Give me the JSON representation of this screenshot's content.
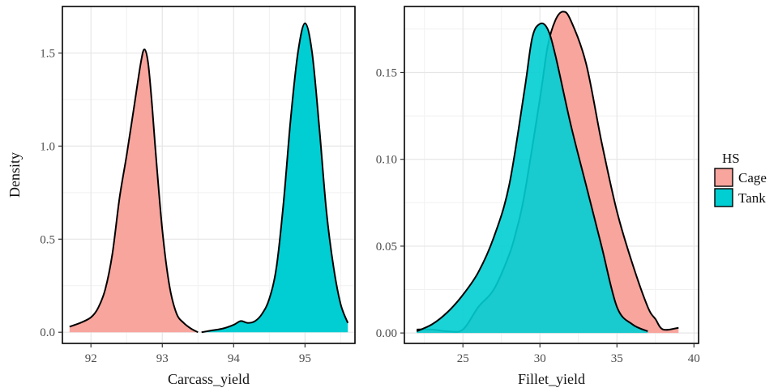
{
  "chart_data": [
    {
      "type": "area",
      "xlabel": "Carcass_yield",
      "ylabel": "Density",
      "xlim": [
        91.6,
        95.7
      ],
      "ylim": [
        -0.06,
        1.75
      ],
      "xticks": [
        92,
        93,
        94,
        95
      ],
      "yticks": [
        0.0,
        0.5,
        1.0,
        1.5
      ],
      "ytick_labels": [
        "0.0",
        "0.5",
        "1.0",
        "1.5"
      ],
      "grid": true,
      "series": [
        {
          "name": "Cage",
          "x": [
            91.7,
            91.85,
            92.0,
            92.1,
            92.2,
            92.3,
            92.4,
            92.5,
            92.6,
            92.7,
            92.75,
            92.8,
            92.85,
            92.9,
            93.0,
            93.1,
            93.2,
            93.3,
            93.4,
            93.5
          ],
          "y": [
            0.03,
            0.05,
            0.08,
            0.13,
            0.23,
            0.42,
            0.72,
            0.95,
            1.2,
            1.45,
            1.52,
            1.45,
            1.25,
            1.0,
            0.55,
            0.25,
            0.1,
            0.05,
            0.02,
            0.0
          ]
        },
        {
          "name": "Tank",
          "x": [
            93.55,
            93.7,
            93.85,
            94.0,
            94.1,
            94.2,
            94.3,
            94.4,
            94.5,
            94.6,
            94.7,
            94.8,
            94.9,
            95.0,
            95.1,
            95.2,
            95.3,
            95.4,
            95.5,
            95.6
          ],
          "y": [
            0.0,
            0.01,
            0.02,
            0.04,
            0.06,
            0.05,
            0.06,
            0.1,
            0.18,
            0.35,
            0.7,
            1.15,
            1.5,
            1.66,
            1.5,
            1.1,
            0.65,
            0.35,
            0.15,
            0.05
          ]
        }
      ]
    },
    {
      "type": "area",
      "xlabel": "Fillet_yield",
      "ylabel": "",
      "xlim": [
        21.2,
        40.3
      ],
      "ylim": [
        -0.006,
        0.188
      ],
      "xticks": [
        25,
        30,
        35,
        40
      ],
      "yticks": [
        0.0,
        0.05,
        0.1,
        0.15
      ],
      "ytick_labels": [
        "0.00",
        "0.05",
        "0.10",
        "0.15"
      ],
      "grid": true,
      "series": [
        {
          "name": "Cage",
          "x": [
            22.0,
            23.0,
            24.0,
            25.0,
            26.0,
            27.0,
            28.0,
            28.5,
            29.0,
            30.0,
            30.5,
            31.0,
            31.5,
            32.0,
            33.0,
            34.0,
            35.0,
            36.0,
            37.0,
            37.5,
            38.0,
            39.0
          ],
          "y": [
            0.002,
            0.002,
            0.001,
            0.002,
            0.015,
            0.025,
            0.045,
            0.06,
            0.08,
            0.135,
            0.165,
            0.18,
            0.185,
            0.18,
            0.155,
            0.11,
            0.07,
            0.04,
            0.015,
            0.008,
            0.002,
            0.003
          ]
        },
        {
          "name": "Tank",
          "x": [
            22.0,
            23.0,
            24.0,
            25.0,
            26.0,
            27.0,
            28.0,
            29.0,
            29.5,
            30.0,
            30.5,
            31.0,
            32.0,
            33.0,
            34.0,
            35.0,
            36.0,
            37.0
          ],
          "y": [
            0.001,
            0.005,
            0.012,
            0.022,
            0.035,
            0.055,
            0.085,
            0.14,
            0.17,
            0.178,
            0.175,
            0.16,
            0.12,
            0.085,
            0.05,
            0.015,
            0.005,
            0.001
          ]
        }
      ]
    }
  ],
  "legend": {
    "title": "HS",
    "position": "right",
    "items": [
      {
        "label": "Cage",
        "color": "#F8A59E"
      },
      {
        "label": "Tank",
        "color": "#00CED3"
      }
    ]
  },
  "colors": {
    "Cage": "#F8A59E",
    "Tank": "#00CED3",
    "overlap": "#00ADB2",
    "grid": "#e6e6e6",
    "outline": "#000000"
  }
}
